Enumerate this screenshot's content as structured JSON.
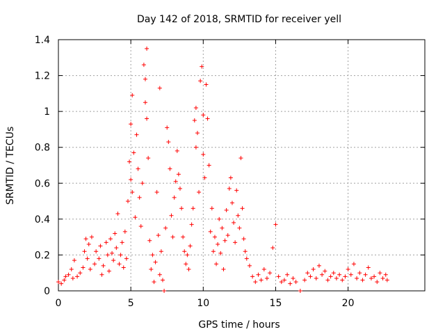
{
  "chart_data": {
    "type": "scatter",
    "title": "Day 142 of 2018, SRMTID for receiver yell",
    "xlabel": "GPS time / hours",
    "ylabel": "SRMTID / TECUs",
    "xlim": [
      0,
      25.3
    ],
    "ylim": [
      0,
      1.4
    ],
    "x_ticks": [
      0,
      5,
      10,
      15,
      20
    ],
    "y_ticks": [
      0,
      0.2,
      0.4,
      0.6,
      0.8,
      1,
      1.2,
      1.4
    ],
    "x_tick_labels": [
      "0",
      "5",
      "10",
      "15",
      "20"
    ],
    "y_tick_labels": [
      "0",
      "0.2",
      "0.4",
      "0.6",
      "0.8",
      "1",
      "1.2",
      "1.4"
    ],
    "grid": true,
    "marker": "+",
    "series_color": "#ff0000",
    "series": [
      {
        "name": "yell",
        "points": [
          [
            0.0,
            0.05
          ],
          [
            0.2,
            0.04
          ],
          [
            0.4,
            0.06
          ],
          [
            0.5,
            0.08
          ],
          [
            0.7,
            0.09
          ],
          [
            0.9,
            0.12
          ],
          [
            1.0,
            0.07
          ],
          [
            1.1,
            0.17
          ],
          [
            1.3,
            0.08
          ],
          [
            1.5,
            0.1
          ],
          [
            1.7,
            0.13
          ],
          [
            1.8,
            0.22
          ],
          [
            1.9,
            0.29
          ],
          [
            2.0,
            0.18
          ],
          [
            2.1,
            0.26
          ],
          [
            2.2,
            0.12
          ],
          [
            2.3,
            0.3
          ],
          [
            2.5,
            0.15
          ],
          [
            2.6,
            0.22
          ],
          [
            2.8,
            0.18
          ],
          [
            2.9,
            0.25
          ],
          [
            3.0,
            0.09
          ],
          [
            3.1,
            0.14
          ],
          [
            3.3,
            0.27
          ],
          [
            3.4,
            0.2
          ],
          [
            3.5,
            0.11
          ],
          [
            3.6,
            0.29
          ],
          [
            3.7,
            0.21
          ],
          [
            3.8,
            0.17
          ],
          [
            3.9,
            0.32
          ],
          [
            4.0,
            0.24
          ],
          [
            4.1,
            0.43
          ],
          [
            4.2,
            0.15
          ],
          [
            4.3,
            0.2
          ],
          [
            4.4,
            0.27
          ],
          [
            4.5,
            0.13
          ],
          [
            4.6,
            0.33
          ],
          [
            4.7,
            0.18
          ],
          [
            4.8,
            0.5
          ],
          [
            4.9,
            0.72
          ],
          [
            5.0,
            0.93
          ],
          [
            5.0,
            0.62
          ],
          [
            5.1,
            1.09
          ],
          [
            5.1,
            0.55
          ],
          [
            5.2,
            0.77
          ],
          [
            5.3,
            0.41
          ],
          [
            5.4,
            0.87
          ],
          [
            5.5,
            0.68
          ],
          [
            5.6,
            0.52
          ],
          [
            5.7,
            0.36
          ],
          [
            5.8,
            0.6
          ],
          [
            5.9,
            1.26
          ],
          [
            6.0,
            1.18
          ],
          [
            6.0,
            1.05
          ],
          [
            6.1,
            1.35
          ],
          [
            6.1,
            0.96
          ],
          [
            6.2,
            0.74
          ],
          [
            6.3,
            0.28
          ],
          [
            6.4,
            0.12
          ],
          [
            6.5,
            0.2
          ],
          [
            6.6,
            0.05
          ],
          [
            6.7,
            0.16
          ],
          [
            6.8,
            0.55
          ],
          [
            6.9,
            0.31
          ],
          [
            7.0,
            1.13
          ],
          [
            7.0,
            0.09
          ],
          [
            7.1,
            0.22
          ],
          [
            7.2,
            0.06
          ],
          [
            7.3,
            0.0
          ],
          [
            7.4,
            0.35
          ],
          [
            7.5,
            0.91
          ],
          [
            7.6,
            0.83
          ],
          [
            7.7,
            0.68
          ],
          [
            7.8,
            0.42
          ],
          [
            7.9,
            0.3
          ],
          [
            8.0,
            0.52
          ],
          [
            8.1,
            0.61
          ],
          [
            8.2,
            0.78
          ],
          [
            8.3,
            0.65
          ],
          [
            8.4,
            0.57
          ],
          [
            8.5,
            0.46
          ],
          [
            8.6,
            0.3
          ],
          [
            8.7,
            0.22
          ],
          [
            8.8,
            0.15
          ],
          [
            8.9,
            0.2
          ],
          [
            9.0,
            0.12
          ],
          [
            9.1,
            0.25
          ],
          [
            9.2,
            0.37
          ],
          [
            9.3,
            0.46
          ],
          [
            9.4,
            0.95
          ],
          [
            9.5,
            1.02
          ],
          [
            9.5,
            0.8
          ],
          [
            9.6,
            0.88
          ],
          [
            9.7,
            0.55
          ],
          [
            9.8,
            1.17
          ],
          [
            9.9,
            1.25
          ],
          [
            10.0,
            0.98
          ],
          [
            10.0,
            0.76
          ],
          [
            10.1,
            0.63
          ],
          [
            10.2,
            1.15
          ],
          [
            10.3,
            0.96
          ],
          [
            10.4,
            0.7
          ],
          [
            10.5,
            0.33
          ],
          [
            10.6,
            0.46
          ],
          [
            10.7,
            0.22
          ],
          [
            10.8,
            0.3
          ],
          [
            10.9,
            0.15
          ],
          [
            11.0,
            0.26
          ],
          [
            11.1,
            0.4
          ],
          [
            11.2,
            0.21
          ],
          [
            11.3,
            0.35
          ],
          [
            11.4,
            0.12
          ],
          [
            11.5,
            0.28
          ],
          [
            11.6,
            0.45
          ],
          [
            11.7,
            0.31
          ],
          [
            11.8,
            0.57
          ],
          [
            11.9,
            0.63
          ],
          [
            12.0,
            0.49
          ],
          [
            12.1,
            0.38
          ],
          [
            12.2,
            0.27
          ],
          [
            12.3,
            0.56
          ],
          [
            12.4,
            0.42
          ],
          [
            12.5,
            0.35
          ],
          [
            12.6,
            0.74
          ],
          [
            12.7,
            0.46
          ],
          [
            12.8,
            0.29
          ],
          [
            12.9,
            0.22
          ],
          [
            13.0,
            0.18
          ],
          [
            13.2,
            0.14
          ],
          [
            13.4,
            0.08
          ],
          [
            13.6,
            0.05
          ],
          [
            13.8,
            0.09
          ],
          [
            14.0,
            0.06
          ],
          [
            14.2,
            0.12
          ],
          [
            14.4,
            0.07
          ],
          [
            14.6,
            0.1
          ],
          [
            14.8,
            0.24
          ],
          [
            15.0,
            0.37
          ],
          [
            15.2,
            0.08
          ],
          [
            15.4,
            0.05
          ],
          [
            15.6,
            0.06
          ],
          [
            15.8,
            0.09
          ],
          [
            16.0,
            0.04
          ],
          [
            16.2,
            0.07
          ],
          [
            16.4,
            0.05
          ],
          [
            16.7,
            0.0
          ],
          [
            17.0,
            0.06
          ],
          [
            17.2,
            0.1
          ],
          [
            17.4,
            0.08
          ],
          [
            17.6,
            0.12
          ],
          [
            17.8,
            0.07
          ],
          [
            18.0,
            0.14
          ],
          [
            18.2,
            0.09
          ],
          [
            18.4,
            0.11
          ],
          [
            18.6,
            0.06
          ],
          [
            18.8,
            0.08
          ],
          [
            19.0,
            0.1
          ],
          [
            19.2,
            0.07
          ],
          [
            19.4,
            0.09
          ],
          [
            19.6,
            0.06
          ],
          [
            19.8,
            0.08
          ],
          [
            20.0,
            0.12
          ],
          [
            20.2,
            0.09
          ],
          [
            20.4,
            0.15
          ],
          [
            20.6,
            0.07
          ],
          [
            20.8,
            0.1
          ],
          [
            21.0,
            0.06
          ],
          [
            21.2,
            0.09
          ],
          [
            21.4,
            0.13
          ],
          [
            21.6,
            0.07
          ],
          [
            21.8,
            0.08
          ],
          [
            22.0,
            0.05
          ],
          [
            22.2,
            0.1
          ],
          [
            22.4,
            0.07
          ],
          [
            22.6,
            0.09
          ],
          [
            22.7,
            0.06
          ]
        ]
      }
    ]
  }
}
